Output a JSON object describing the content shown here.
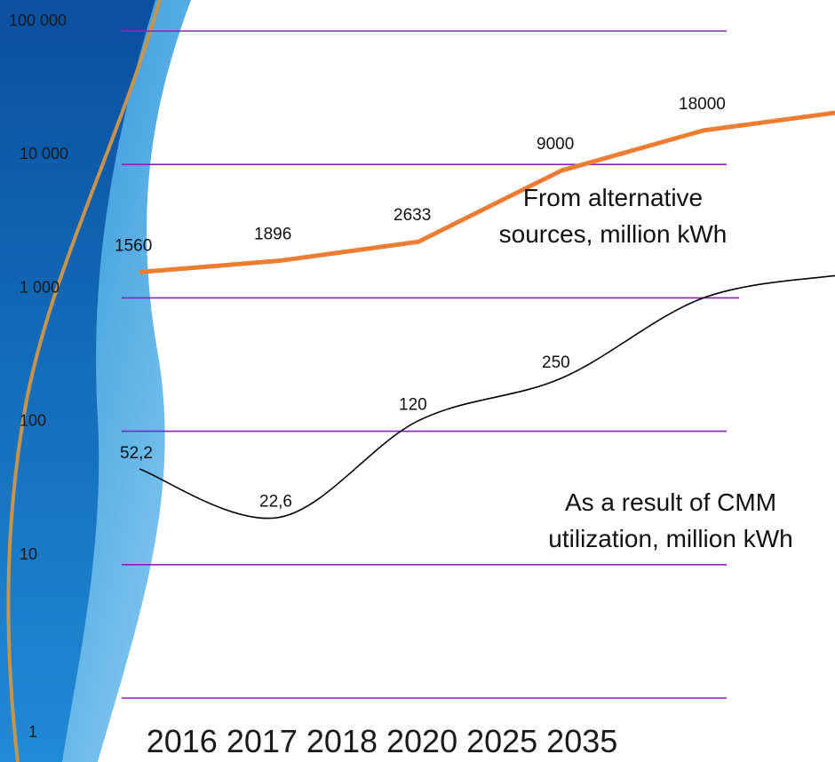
{
  "chart_data": {
    "type": "line",
    "y_scale": "log",
    "ylim": [
      1,
      100000
    ],
    "grid": true,
    "grid_color": "#8e1fbf",
    "y_ticks": [
      {
        "value": 1,
        "label": "1"
      },
      {
        "value": 10,
        "label": "10"
      },
      {
        "value": 100,
        "label": "100"
      },
      {
        "value": 1000,
        "label": "1 000"
      },
      {
        "value": 10000,
        "label": "10 000"
      },
      {
        "value": 100000,
        "label": "100 000"
      }
    ],
    "categories": [
      "2016",
      "2017",
      "2018",
      "2020",
      "2025",
      "2035"
    ],
    "series": [
      {
        "name": "From alternative sources, million kWh",
        "name_lines": [
          "From alternative",
          "sources, million kWh"
        ],
        "color": "#ed7d31",
        "smooth": false,
        "values": [
          1560,
          1896,
          2633,
          9000,
          18000,
          25000
        ],
        "labels": [
          "1560",
          "1896",
          "2633",
          "9000",
          "18000",
          ""
        ]
      },
      {
        "name": "As a result of CMM utilization, million kWh",
        "name_lines": [
          "As a result of CMM",
          "utilization, million kWh"
        ],
        "color": "#000000",
        "smooth": true,
        "values": [
          52.2,
          22.6,
          120,
          250,
          1000,
          1500
        ],
        "labels": [
          "52,2",
          "22,6",
          "120",
          "250",
          "",
          ""
        ]
      }
    ]
  },
  "background": {
    "dark_blue": "#0a4fa0",
    "mid_blue": "#1f8ad6",
    "light_blue": "#8fd0f2",
    "gold_curve": "#c9944a"
  }
}
